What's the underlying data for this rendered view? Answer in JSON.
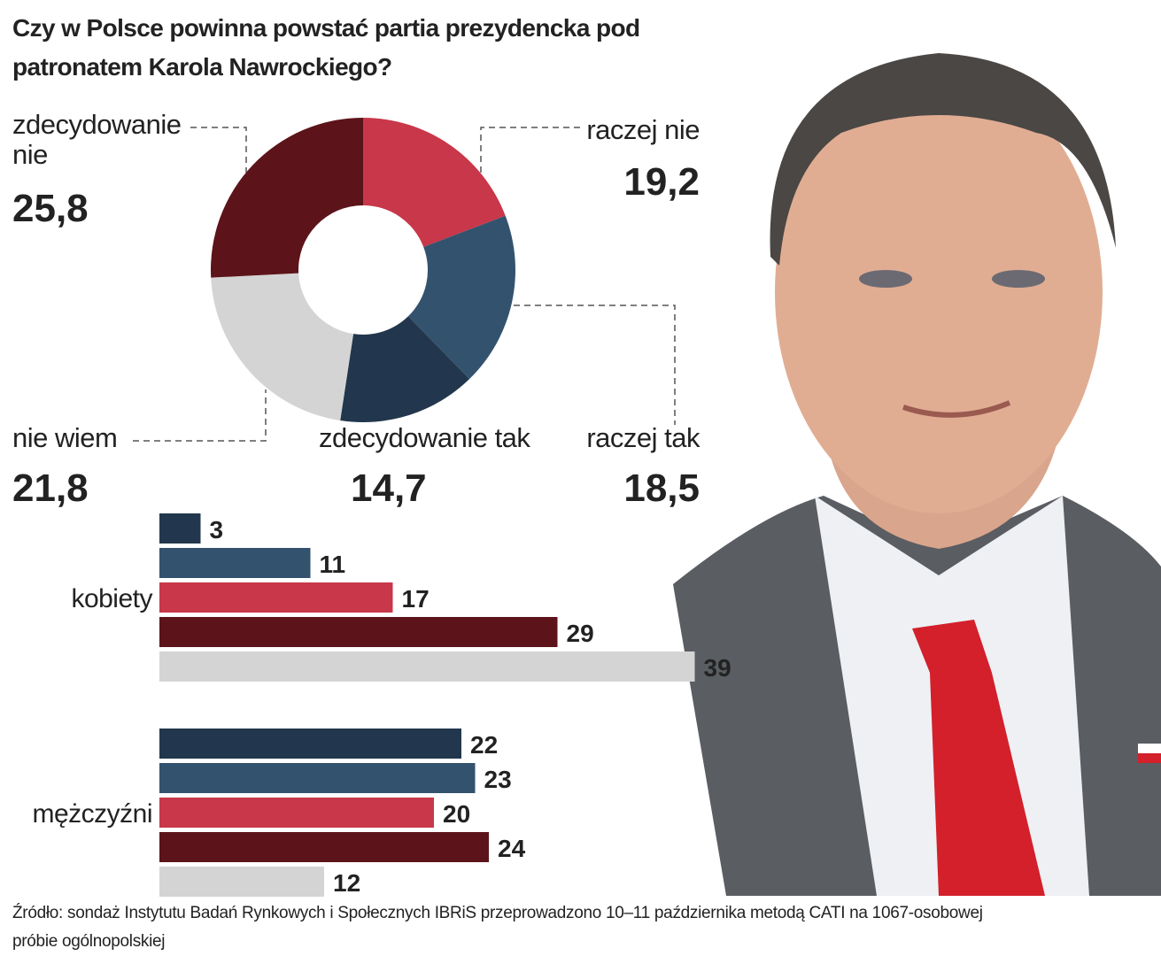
{
  "title": "Czy w Polsce powinna powstać partia prezydencka pod patronatem Karola Nawrockiego?",
  "source": "Źródło: sondaż Instytutu Badań Rynkowych i Społecznych IBRiS przeprowadzono 10–11 października metodą CATI na 1067-osobowej próbie ogólnopolskiej",
  "chart_data": [
    {
      "type": "pie",
      "donut": true,
      "categories": [
        "raczej nie",
        "raczej tak",
        "zdecydowanie tak",
        "nie wiem",
        "zdecydowanie nie"
      ],
      "values": [
        19.2,
        18.5,
        14.7,
        21.8,
        25.8
      ],
      "value_labels": [
        "19,2",
        "18,5",
        "14,7",
        "21,8",
        "25,8"
      ],
      "colors": [
        "#c8374a",
        "#33526e",
        "#22374d",
        "#d4d4d4",
        "#5c141a"
      ]
    },
    {
      "type": "bar",
      "orientation": "horizontal",
      "categories": [
        "kobiety",
        "mężczyźni"
      ],
      "series": [
        {
          "color": "#22374d",
          "values": [
            3,
            22
          ]
        },
        {
          "color": "#33526e",
          "values": [
            11,
            23
          ]
        },
        {
          "color": "#c8374a",
          "values": [
            17,
            20
          ]
        },
        {
          "color": "#5c141a",
          "values": [
            29,
            24
          ]
        },
        {
          "color": "#d4d4d4",
          "values": [
            39,
            12
          ]
        }
      ]
    }
  ]
}
